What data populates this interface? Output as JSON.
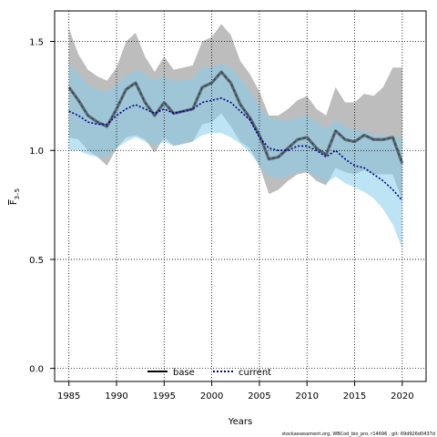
{
  "chart_data": {
    "type": "line",
    "title": "",
    "xlabel": "Years",
    "ylabel_main": "F",
    "ylabel_sub": "3–5",
    "xlim": [
      1983.5,
      2022.5
    ],
    "ylim": [
      -0.06,
      1.64
    ],
    "xticks": [
      1985,
      1990,
      1995,
      2000,
      2005,
      2010,
      2015,
      2020
    ],
    "yticks": [
      0.0,
      0.5,
      1.0,
      1.5
    ],
    "ytick_labels": [
      "0.0",
      "0.5",
      "1.0",
      "1.5"
    ],
    "grid": true,
    "legend_position": "bottom",
    "legend": [
      {
        "name": "base",
        "style": "solid",
        "color": "#000000"
      },
      {
        "name": "current",
        "style": "dotted",
        "color": "#00008B"
      }
    ],
    "colors": {
      "base_band": "#999999",
      "current_band": "#87CEEB",
      "overlap_band": "#8FAFC7",
      "base_line": "#5A6A78",
      "current_line": "#00008B"
    },
    "x": [
      1985,
      1986,
      1987,
      1988,
      1989,
      1990,
      1991,
      1992,
      1993,
      1994,
      1995,
      1996,
      1997,
      1998,
      1999,
      2000,
      2001,
      2002,
      2003,
      2004,
      2005,
      2006,
      2007,
      2008,
      2009,
      2010,
      2011,
      2012,
      2013,
      2014,
      2015,
      2016,
      2017,
      2018,
      2019,
      2020
    ],
    "series": [
      {
        "name": "base",
        "values": [
          1.29,
          1.23,
          1.16,
          1.13,
          1.11,
          1.19,
          1.28,
          1.31,
          1.22,
          1.16,
          1.22,
          1.17,
          1.18,
          1.19,
          1.29,
          1.31,
          1.36,
          1.31,
          1.21,
          1.15,
          1.07,
          0.96,
          0.97,
          1.01,
          1.05,
          1.06,
          1.01,
          0.98,
          1.09,
          1.05,
          1.04,
          1.07,
          1.05,
          1.05,
          1.06,
          0.94
        ],
        "lower": [
          1.06,
          1.05,
          1.0,
          0.97,
          0.93,
          1.01,
          1.06,
          1.07,
          1.05,
          0.99,
          1.06,
          1.02,
          1.03,
          1.04,
          1.12,
          1.13,
          1.17,
          1.11,
          1.04,
          1.01,
          0.93,
          0.8,
          0.82,
          0.86,
          0.89,
          0.9,
          0.86,
          0.84,
          0.92,
          0.9,
          0.89,
          0.91,
          0.89,
          0.89,
          0.89,
          0.77
        ],
        "upper": [
          1.56,
          1.44,
          1.37,
          1.34,
          1.32,
          1.38,
          1.5,
          1.54,
          1.43,
          1.36,
          1.43,
          1.37,
          1.38,
          1.39,
          1.5,
          1.52,
          1.58,
          1.53,
          1.41,
          1.35,
          1.27,
          1.16,
          1.16,
          1.19,
          1.23,
          1.25,
          1.19,
          1.16,
          1.29,
          1.22,
          1.22,
          1.26,
          1.25,
          1.29,
          1.38,
          1.38
        ]
      },
      {
        "name": "current",
        "values": [
          1.18,
          1.16,
          1.13,
          1.12,
          1.12,
          1.16,
          1.19,
          1.21,
          1.19,
          1.17,
          1.19,
          1.17,
          1.18,
          1.19,
          1.22,
          1.23,
          1.24,
          1.22,
          1.18,
          1.14,
          1.06,
          1.01,
          1.0,
          1.0,
          1.02,
          1.02,
          1.0,
          0.97,
          1.0,
          0.96,
          0.93,
          0.92,
          0.89,
          0.86,
          0.82,
          0.77
        ],
        "lower": [
          1.0,
          1.0,
          0.98,
          0.97,
          0.97,
          1.01,
          1.04,
          1.06,
          1.04,
          1.02,
          1.04,
          1.02,
          1.03,
          1.04,
          1.07,
          1.08,
          1.08,
          1.06,
          1.03,
          0.99,
          0.93,
          0.88,
          0.87,
          0.88,
          0.9,
          0.9,
          0.88,
          0.85,
          0.88,
          0.85,
          0.83,
          0.81,
          0.78,
          0.73,
          0.66,
          0.55
        ],
        "upper": [
          1.4,
          1.35,
          1.3,
          1.28,
          1.27,
          1.3,
          1.34,
          1.37,
          1.35,
          1.32,
          1.34,
          1.32,
          1.32,
          1.33,
          1.38,
          1.38,
          1.4,
          1.38,
          1.33,
          1.28,
          1.2,
          1.15,
          1.14,
          1.14,
          1.15,
          1.16,
          1.13,
          1.1,
          1.14,
          1.11,
          1.09,
          1.09,
          1.07,
          1.07,
          1.06,
          1.06
        ]
      }
    ]
  },
  "footnote": "stockassessment.org, WBCod_bio_pro, r14696 , git: 69d926d0437d"
}
